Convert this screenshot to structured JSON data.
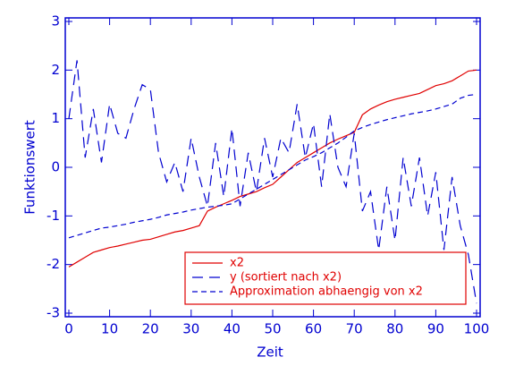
{
  "chart_data": {
    "type": "line",
    "xlabel": "Zeit",
    "ylabel": "Funktionswert",
    "x": [
      0,
      2,
      4,
      6,
      8,
      10,
      12,
      14,
      16,
      18,
      20,
      22,
      24,
      26,
      28,
      30,
      32,
      34,
      36,
      38,
      40,
      42,
      44,
      46,
      48,
      50,
      52,
      54,
      56,
      58,
      60,
      62,
      64,
      66,
      68,
      70,
      72,
      74,
      76,
      78,
      80,
      82,
      84,
      86,
      88,
      90,
      92,
      94,
      96,
      98,
      100
    ],
    "series": [
      {
        "name": "x2",
        "color": "#e00000",
        "dash": "none",
        "values": [
          -2.05,
          -1.95,
          -1.85,
          -1.75,
          -1.7,
          -1.65,
          -1.62,
          -1.58,
          -1.54,
          -1.5,
          -1.48,
          -1.43,
          -1.38,
          -1.33,
          -1.3,
          -1.25,
          -1.2,
          -0.9,
          -0.82,
          -0.75,
          -0.68,
          -0.6,
          -0.55,
          -0.5,
          -0.42,
          -0.35,
          -0.2,
          -0.05,
          0.1,
          0.2,
          0.3,
          0.4,
          0.5,
          0.58,
          0.65,
          0.72,
          1.08,
          1.2,
          1.28,
          1.35,
          1.4,
          1.44,
          1.48,
          1.52,
          1.6,
          1.68,
          1.72,
          1.78,
          1.88,
          1.98,
          2.0
        ]
      },
      {
        "name": "y (sortiert nach x2)",
        "color": "#0000d0",
        "dash": "12 7",
        "values": [
          1.0,
          2.2,
          0.2,
          1.2,
          0.1,
          1.3,
          0.7,
          0.6,
          1.2,
          1.7,
          1.6,
          0.3,
          -0.3,
          0.1,
          -0.5,
          0.6,
          -0.2,
          -0.8,
          0.5,
          -0.6,
          0.8,
          -0.8,
          0.3,
          -0.5,
          0.6,
          -0.2,
          0.6,
          0.3,
          1.3,
          0.2,
          0.9,
          -0.4,
          1.1,
          0.0,
          -0.4,
          0.7,
          -0.9,
          -0.5,
          -1.7,
          -0.4,
          -1.5,
          0.2,
          -0.8,
          0.2,
          -1.0,
          -0.1,
          -1.7,
          -0.2,
          -1.2,
          -1.8,
          -2.8
        ]
      },
      {
        "name": "Approximation abhaengig von x2",
        "color": "#0000d0",
        "dash": "6 4",
        "values": [
          -1.45,
          -1.4,
          -1.35,
          -1.3,
          -1.25,
          -1.23,
          -1.2,
          -1.17,
          -1.13,
          -1.1,
          -1.07,
          -1.03,
          -0.98,
          -0.95,
          -0.92,
          -0.88,
          -0.85,
          -0.82,
          -0.8,
          -0.78,
          -0.75,
          -0.65,
          -0.55,
          -0.45,
          -0.35,
          -0.25,
          -0.15,
          -0.05,
          0.05,
          0.15,
          0.22,
          0.3,
          0.4,
          0.5,
          0.62,
          0.75,
          0.82,
          0.88,
          0.93,
          0.98,
          1.02,
          1.06,
          1.1,
          1.13,
          1.16,
          1.2,
          1.25,
          1.3,
          1.42,
          1.48,
          1.5
        ]
      }
    ],
    "xlim": [
      0,
      100
    ],
    "ylim": [
      -3,
      3
    ],
    "xticks": [
      0,
      10,
      20,
      30,
      40,
      50,
      60,
      70,
      80,
      90,
      100
    ],
    "yticks": [
      -3,
      -2,
      -1,
      0,
      1,
      2,
      3
    ],
    "legend": "lower right",
    "axis_color": "#0000d0",
    "legend_text_color": "#e00000"
  }
}
